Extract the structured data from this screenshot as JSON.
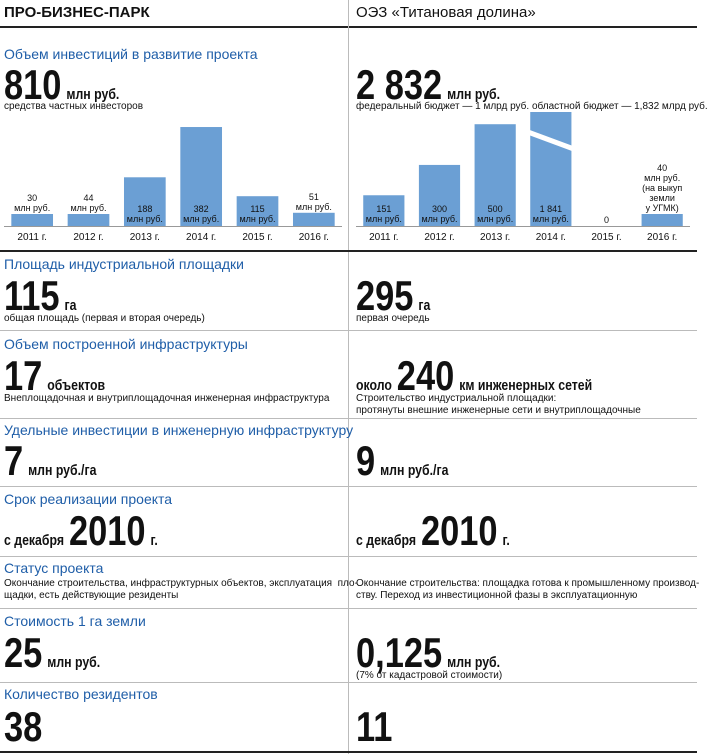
{
  "left": {
    "title": "ПРО-БИЗНЕС-ПАРК",
    "invest_value": "810",
    "invest_unit": "млн руб.",
    "invest_note": "средства частных инвесторов",
    "area_value": "115",
    "area_unit": "га",
    "area_note": "общая площадь (первая и вторая очередь)",
    "infra_value": "17",
    "infra_unit": "объектов",
    "infra_note": "Внеплощадочная и внутриплощадочная инженерная инфраструктура",
    "unit_invest_value": "7",
    "unit_invest_unit": "млн руб./га",
    "term_pre": "с декабря",
    "term_value": "2010",
    "term_unit": "г.",
    "status_text": "Окончание строительства, инфраструктурных объектов, эксплуатация  пло-\nщадки, есть действующие резиденты",
    "land_value": "25",
    "land_unit": "млн руб.",
    "residents_value": "38"
  },
  "right": {
    "title": "ОЭЗ «Титановая долина»",
    "invest_value": "2 832",
    "invest_unit": "млн руб.",
    "invest_note": "федеральный бюджет — 1 млрд руб. областной бюджет — 1,832 млрд руб.",
    "area_value": "295",
    "area_unit": "га",
    "area_note": "первая очередь",
    "infra_pre": "около",
    "infra_value": "240",
    "infra_unit": "км инженерных сетей",
    "infra_note": "Строительство индустриальной площадки:\nпротянуты внешние инженерные сети и внутриплощадочные",
    "unit_invest_value": "9",
    "unit_invest_unit": "млн руб./га",
    "term_pre": "с декабря",
    "term_value": "2010",
    "term_unit": "г.",
    "status_text": "Окончание строительства: площадка готова к промышленному производ-\nству. Переход из инвестиционной фазы в эксплуатационную",
    "land_value": "0,125",
    "land_unit": "млн руб.",
    "land_note": "(7% от кадастровой стоимости)",
    "residents_value": "11"
  },
  "labels": {
    "invest": "Объем инвестиций в развитие проекта",
    "area": "Площадь индустриальной площадки",
    "infra": "Объем построенной инфраструктуры",
    "unit_invest": "Удельные инвестиции в инженерную инфраструктуру",
    "term": "Срок реализации проекта",
    "status": "Статус проекта",
    "land": "Стоимость 1 га земли",
    "residents": "Количество резидентов"
  },
  "colors": {
    "accent": "#1f5ea8",
    "bar": "#6b9fd4"
  },
  "chart_data": [
    {
      "type": "bar",
      "categories": [
        "2011 г.",
        "2012 г.",
        "2013 г.",
        "2014 г.",
        "2015 г.",
        "2016 г."
      ],
      "values": [
        30,
        44,
        188,
        382,
        115,
        51
      ],
      "value_labels": [
        "30\nмлн руб.",
        "44\nмлн руб.",
        "188\nмлн руб.",
        "382\nмлн руб.",
        "115\nмлн руб.",
        "51\nмлн руб."
      ],
      "ylim": [
        0,
        440
      ],
      "broken": []
    },
    {
      "type": "bar",
      "categories": [
        "2011 г.",
        "2012 г.",
        "2013 г.",
        "2014 г.",
        "2015 г.",
        "2016 г."
      ],
      "values": [
        151,
        300,
        500,
        1841,
        0,
        40
      ],
      "value_labels": [
        "151\nмлн руб.",
        "300\nмлн руб.",
        "500\nмлн руб.",
        "1 841\nмлн руб.",
        "0",
        "40\nмлн руб.\n(на выкуп\nземли\nу УГМК)"
      ],
      "ylim": [
        0,
        560
      ],
      "broken": [
        3
      ]
    }
  ]
}
